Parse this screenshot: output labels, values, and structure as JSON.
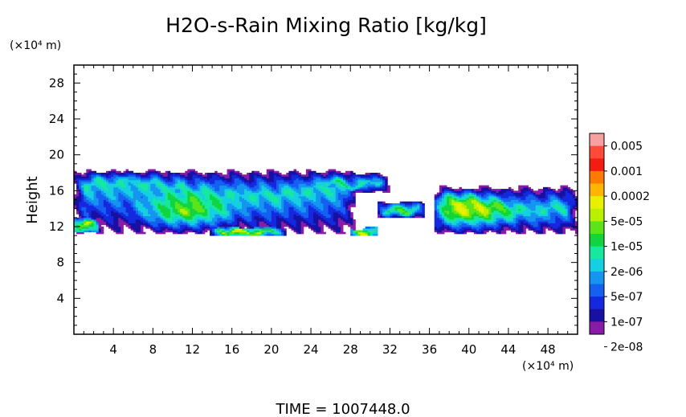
{
  "chart_data": {
    "type": "heatmap",
    "title": "H2O-s-Rain Mixing Ratio [kg/kg]",
    "ylabel": "Height",
    "y_unit": "(×10⁴ m)",
    "x_unit": "(×10⁴ m)",
    "footer": "TIME  =  1007448.0",
    "xlim": [
      0,
      51
    ],
    "ylim": [
      0,
      30
    ],
    "x_ticks": [
      4,
      8,
      12,
      16,
      20,
      24,
      28,
      32,
      36,
      40,
      44,
      48
    ],
    "y_ticks": [
      4,
      8,
      12,
      16,
      20,
      24,
      28
    ],
    "colorbar": {
      "labels": [
        "0.005",
        "0.001",
        "0.0002",
        "5e-05",
        "1e-05",
        "2e-06",
        "5e-07",
        "1e-07",
        "2e-08"
      ],
      "colors": [
        "#f7a0a0",
        "#ff4a3a",
        "#f21d10",
        "#ff7a00",
        "#ffb400",
        "#e8f000",
        "#b9f000",
        "#5ce41a",
        "#10d440",
        "#16e8a0",
        "#14d0e0",
        "#1496f0",
        "#1460f0",
        "#1428e0",
        "#1810a0",
        "#8a1aa8"
      ]
    },
    "fields": [
      {
        "name": "band-west",
        "xr": [
          0.0,
          28.5
        ],
        "yr": [
          11.2,
          18.3
        ],
        "base": 16.2,
        "amp": 0.8,
        "ph": 0.6,
        "k": 0.23,
        "cx": 11.2,
        "cy": 13.6,
        "pk": 0.92
      },
      {
        "name": "cloud-left-edge",
        "xr": [
          0.0,
          2.5
        ],
        "yr": [
          11.4,
          12.9
        ],
        "base": 12.2,
        "amp": 0.2,
        "ph": 1.2,
        "k": 1.0,
        "cx": 0.6,
        "cy": 12.0,
        "pk": 0.9
      },
      {
        "name": "streak-low",
        "xr": [
          13.8,
          21.5
        ],
        "yr": [
          10.9,
          12.0
        ],
        "base": 11.5,
        "amp": 0.15,
        "ph": 0.2,
        "k": 0.6,
        "cx": 17.0,
        "cy": 11.4,
        "pk": 0.7
      },
      {
        "name": "cloud-small-29",
        "xr": [
          28.0,
          30.8
        ],
        "yr": [
          10.9,
          11.9
        ],
        "base": 11.4,
        "amp": 0.1,
        "ph": 0.0,
        "k": 1.0,
        "cx": 29.3,
        "cy": 11.4,
        "pk": 0.85
      },
      {
        "name": "cloud-31",
        "xr": [
          30.8,
          35.5
        ],
        "yr": [
          13.0,
          14.8
        ],
        "base": 13.9,
        "amp": 0.25,
        "ph": 0.7,
        "k": 0.9,
        "cx": 33.0,
        "cy": 13.9,
        "pk": 0.35
      },
      {
        "name": "band-east",
        "xr": [
          36.5,
          51.0
        ],
        "yr": [
          11.2,
          16.5
        ],
        "base": 14.4,
        "amp": 0.6,
        "ph": 1.1,
        "k": 0.35,
        "cx": 39.6,
        "cy": 13.6,
        "pk": 0.9
      },
      {
        "name": "plume-upper",
        "xr": [
          24.5,
          32.0
        ],
        "yr": [
          15.8,
          18.0
        ],
        "base": 16.9,
        "amp": 0.4,
        "ph": 0.9,
        "k": 0.8,
        "cx": 25.5,
        "cy": 16.9,
        "pk": 0.15
      }
    ]
  }
}
